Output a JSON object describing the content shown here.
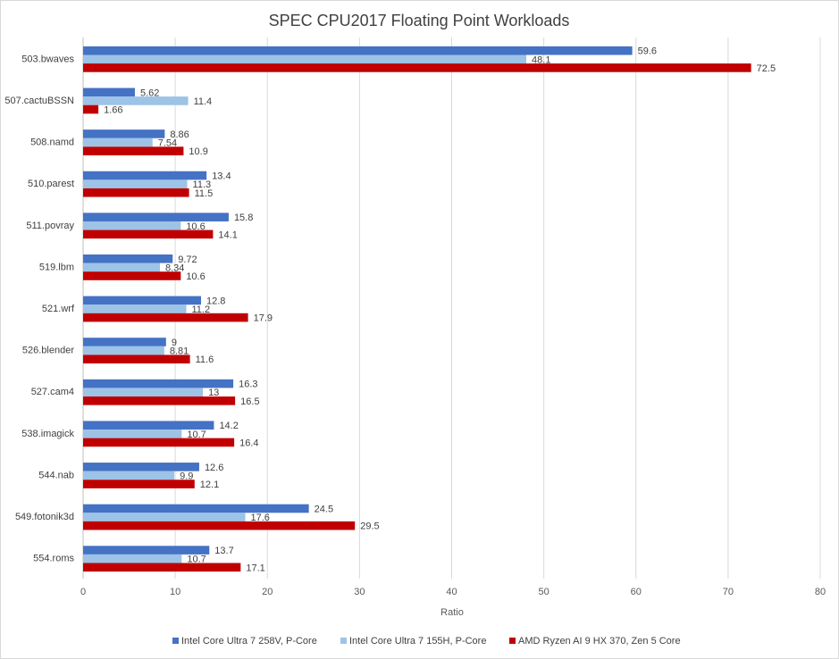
{
  "chart_data": {
    "type": "bar",
    "orientation": "horizontal",
    "title": "SPEC CPU2017 Floating Point Workloads",
    "xlabel": "Ratio",
    "ylabel": "",
    "xlim": [
      0,
      80
    ],
    "x_ticks": [
      "0",
      "10",
      "20",
      "30",
      "40",
      "50",
      "60",
      "70",
      "80"
    ],
    "grid": "vertical",
    "legend_position": "bottom",
    "categories": [
      "503.bwaves",
      "507.cactuBSSN",
      "508.namd",
      "510.parest",
      "511.povray",
      "519.lbm",
      "521.wrf",
      "526.blender",
      "527.cam4",
      "538.imagick",
      "544.nab",
      "549.fotonik3d",
      "554.roms"
    ],
    "series": [
      {
        "name": "Intel Core Ultra 7 258V, P-Core",
        "color": "#4472c4",
        "values": [
          59.6,
          5.62,
          8.86,
          13.4,
          15.8,
          9.72,
          12.8,
          9,
          16.3,
          14.2,
          12.6,
          24.5,
          13.7
        ],
        "labels": [
          "59.6",
          "5.62",
          "8.86",
          "13.4",
          "15.8",
          "9.72",
          "12.8",
          "9",
          "16.3",
          "14.2",
          "12.6",
          "24.5",
          "13.7"
        ]
      },
      {
        "name": "Intel Core Ultra 7 155H, P-Core",
        "color": "#9dc3e6",
        "values": [
          48.1,
          11.4,
          7.54,
          11.3,
          10.6,
          8.34,
          11.2,
          8.81,
          13,
          10.7,
          9.9,
          17.6,
          10.7
        ],
        "labels": [
          "48.1",
          "11.4",
          "7.54",
          "11.3",
          "10.6",
          "8.34",
          "11.2",
          "8.81",
          "13",
          "10.7",
          "9.9",
          "17.6",
          "10.7"
        ]
      },
      {
        "name": "AMD Ryzen AI 9 HX 370, Zen 5 Core",
        "color": "#c00000",
        "values": [
          72.5,
          1.66,
          10.9,
          11.5,
          14.1,
          10.6,
          17.9,
          11.6,
          16.5,
          16.4,
          12.1,
          29.5,
          17.1
        ],
        "labels": [
          "72.5",
          "1.66",
          "10.9",
          "11.5",
          "14.1",
          "10.6",
          "17.9",
          "11.6",
          "16.5",
          "16.4",
          "12.1",
          "29.5",
          "17.1"
        ]
      }
    ]
  }
}
